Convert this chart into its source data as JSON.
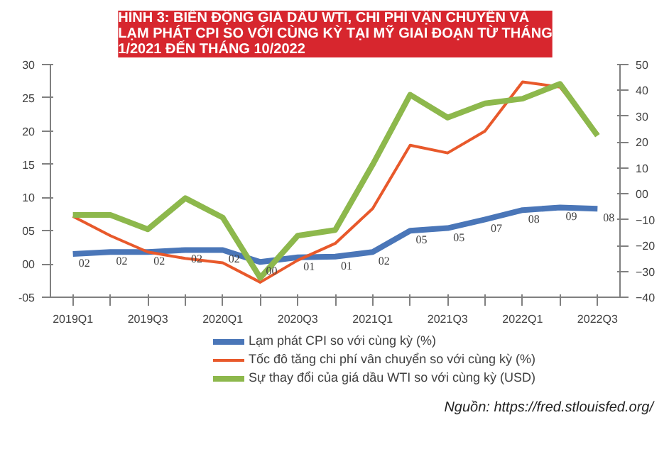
{
  "chart_data": {
    "type": "line",
    "title": "HÌNH 3: BIẾN ĐỘNG GIÁ DẦU WTI, CHI PHÍ VẬN CHUYỂN VÀ\nLẠM PHÁT CPI SO VỚI CÙNG KỲ TẠI MỸ GIAI ĐOẠN TỪ THÁNG\n1/2021 ĐẾN THÁNG 10/2022",
    "categories": [
      "2019Q1",
      null,
      "2019Q3",
      null,
      "2020Q1",
      null,
      "2020Q3",
      null,
      "2021Q1",
      null,
      "2021Q3",
      null,
      "2022Q1",
      null,
      "2022Q3"
    ],
    "series": [
      {
        "name": "Lạm phát CPI so với cùng kỳ (%)",
        "color": "#4a76b8",
        "values": [
          1.5,
          1.8,
          1.8,
          2.1,
          2.1,
          0.3,
          1.0,
          1.1,
          1.8,
          5.0,
          5.4,
          6.7,
          8.1,
          8.5,
          8.3
        ],
        "value_labels": [
          "02",
          "02",
          "02",
          "02",
          "02",
          "00",
          "01",
          "01",
          "02",
          "05",
          "05",
          "07",
          "08",
          "09",
          "08"
        ]
      },
      {
        "name": "Tốc đô tăng chi phí vân chuyển so với cùng kỳ (%)",
        "color": "#e8592b",
        "axis": "y2",
        "values": [
          -8.7,
          -16.2,
          -22.5,
          -25,
          -26.7,
          -34.2,
          -25.7,
          -19.2,
          -5.7,
          18.8,
          15.8,
          24.3,
          43.3,
          41.3,
          23.3
        ]
      },
      {
        "name": "Sự thay đổi của giá dầu WTI so với cùng kỳ (USD)",
        "color": "#8db84c",
        "axis": "y2",
        "values": [
          -8.2,
          -8.2,
          -13.7,
          -1.7,
          -9.2,
          -32.5,
          -16.2,
          -14,
          11.3,
          38.3,
          29.5,
          35,
          36.8,
          42.5,
          22.5
        ]
      }
    ],
    "ylim": [
      -5,
      30
    ],
    "yticks": [
      {
        "value": -5,
        "label": "-05"
      },
      {
        "value": 0,
        "label": "00"
      },
      {
        "value": 5,
        "label": "05"
      },
      10,
      15,
      20,
      25,
      30
    ],
    "y2lim": [
      -40,
      50
    ],
    "y2ticks": [
      -40,
      -30,
      -20,
      -10,
      {
        "value": 0,
        "label": "00"
      },
      10,
      20,
      30,
      40,
      50
    ],
    "grid": false,
    "legend": "bottom",
    "marker": "none",
    "line_style": "solid",
    "annotations": [
      "Nguồn: https://fred.stlouisfed.org/"
    ]
  }
}
